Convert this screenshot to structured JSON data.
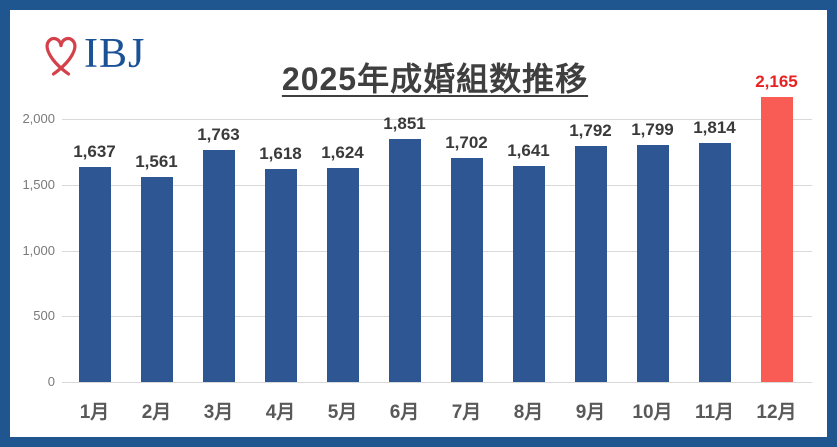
{
  "logo": {
    "text": "IBJ",
    "heart_color": "#d4414a",
    "text_color": "#1b5296"
  },
  "chart_data": {
    "type": "bar",
    "title": "2025年成婚組数推移",
    "categories": [
      "1月",
      "2月",
      "3月",
      "4月",
      "5月",
      "6月",
      "7月",
      "8月",
      "9月",
      "10月",
      "11月",
      "12月"
    ],
    "values": [
      1637,
      1561,
      1763,
      1618,
      1624,
      1851,
      1702,
      1641,
      1792,
      1799,
      1814,
      2165
    ],
    "value_labels": [
      "1,637",
      "1,561",
      "1,763",
      "1,618",
      "1,624",
      "1,851",
      "1,702",
      "1,641",
      "1,792",
      "1,799",
      "1,814",
      "2,165"
    ],
    "xlabel": "",
    "ylabel": "",
    "ylim": [
      0,
      2000
    ],
    "yticks": [
      0,
      500,
      1000,
      1500,
      2000
    ],
    "ytick_labels": [
      "0",
      "500",
      "1,000",
      "1,500",
      "2,000"
    ],
    "grid": true,
    "legend": "none",
    "bar_color": "#2e5693",
    "highlight_index": 11,
    "highlight_bar_color": "#f95b55",
    "highlight_label_color": "#e82222",
    "label_color": "#3a3a3a"
  }
}
